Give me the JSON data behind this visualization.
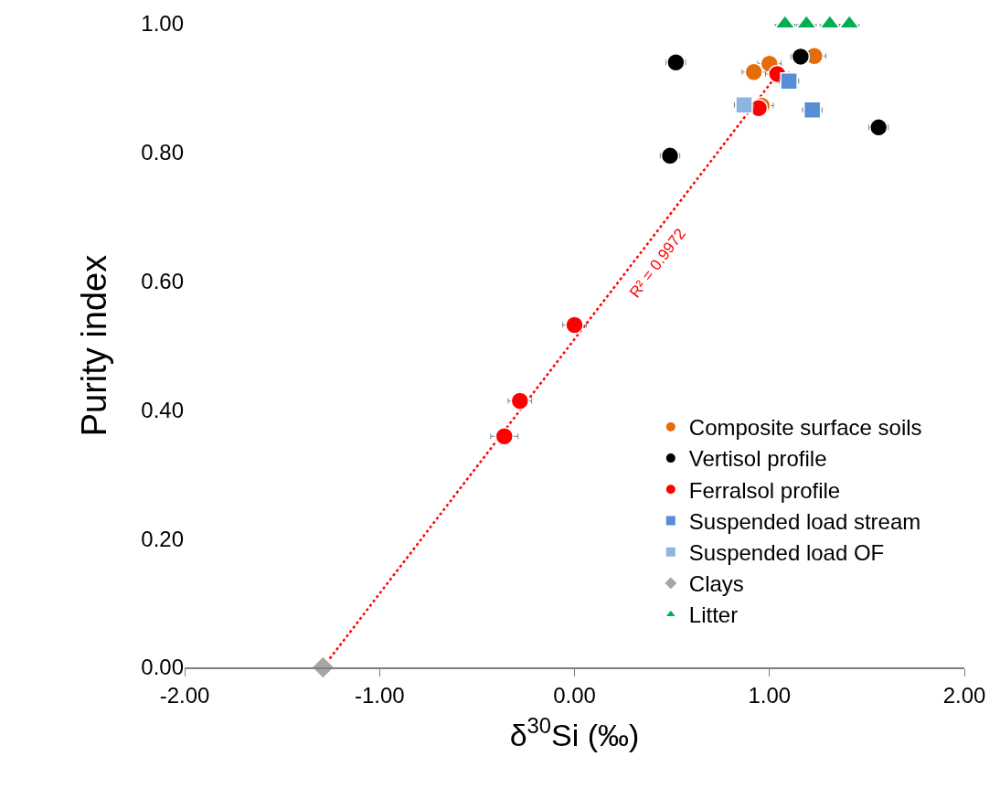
{
  "chart_data": {
    "type": "scatter",
    "xlabel": "δ$^{30}$Si (‰)",
    "ylabel": "Purity index",
    "xlim": [
      -2,
      2
    ],
    "xticks": [
      {
        "value": -2,
        "label": "-2.00"
      },
      {
        "value": -1,
        "label": "-1.00"
      },
      {
        "value": 0,
        "label": "0.00"
      },
      {
        "value": 1,
        "label": "1.00"
      },
      {
        "value": 2,
        "label": "2.00"
      }
    ],
    "ylim": [
      0,
      1
    ],
    "yticks": [
      {
        "value": 0,
        "label": "0.00"
      },
      {
        "value": 0.2,
        "label": "0.20"
      },
      {
        "value": 0.4,
        "label": "0.40"
      },
      {
        "value": 0.6,
        "label": "0.60"
      },
      {
        "value": 0.8,
        "label": "0.80"
      },
      {
        "value": 1,
        "label": "1.00"
      }
    ],
    "grid": false,
    "legend": "bottom right",
    "series": [
      {
        "type": "line",
        "color": "#ff0000",
        "line_style": "dotted",
        "marker": "none",
        "x": [
          -1.29,
          1.05
        ],
        "values": [
          0,
          0.925
        ]
      },
      {
        "name": "Composite surface soils",
        "color": "#e46c0a",
        "marker": "circle",
        "x": [
          0.92,
          1.0,
          1.23,
          0.96
        ],
        "values": [
          0.925,
          0.938,
          0.95,
          0.873
        ],
        "xerrors": [
          0.06,
          0.06,
          0.06,
          0.06
        ]
      },
      {
        "name": "Vertisol profile",
        "color": "#000000",
        "marker": "circle",
        "x": [
          0.52,
          0.49,
          1.16,
          1.56
        ],
        "values": [
          0.94,
          0.795,
          0.949,
          0.839
        ],
        "xerrors": [
          0.05,
          0.05,
          0.05,
          0.05
        ]
      },
      {
        "name": "Ferralsol profile",
        "color": "#ff0000",
        "marker": "circle",
        "x": [
          -0.36,
          -0.28,
          0.0,
          0.945,
          1.04
        ],
        "values": [
          0.359,
          0.414,
          0.532,
          0.869,
          0.922
        ],
        "xerrors": [
          0.07,
          0.06,
          0.06,
          null,
          0.06
        ]
      },
      {
        "name": "Suspended load stream",
        "color": "#558ed5",
        "marker": "square",
        "x": [
          1.1,
          1.22
        ],
        "values": [
          0.911,
          0.866
        ],
        "xerrors": [
          0.05,
          0.05
        ]
      },
      {
        "name": "Suspended load OF",
        "color": "#8eb4e3",
        "marker": "square",
        "x": [
          0.87
        ],
        "values": [
          0.874
        ],
        "xerrors": [
          0.05
        ]
      },
      {
        "name": "Clays",
        "color": "#a6a6a6",
        "marker": "diamond",
        "x": [
          -1.29
        ],
        "values": [
          0
        ]
      },
      {
        "name": "Litter",
        "color": "#00b050",
        "marker": "triangle",
        "x": [
          1.08,
          1.19,
          1.31,
          1.41
        ],
        "values": [
          1.0,
          1.0,
          1.0,
          1.0
        ],
        "xerrors": [
          0.05,
          0.05,
          0.05,
          0.05
        ]
      }
    ],
    "annotations": [
      "R² = 0.9972"
    ]
  }
}
